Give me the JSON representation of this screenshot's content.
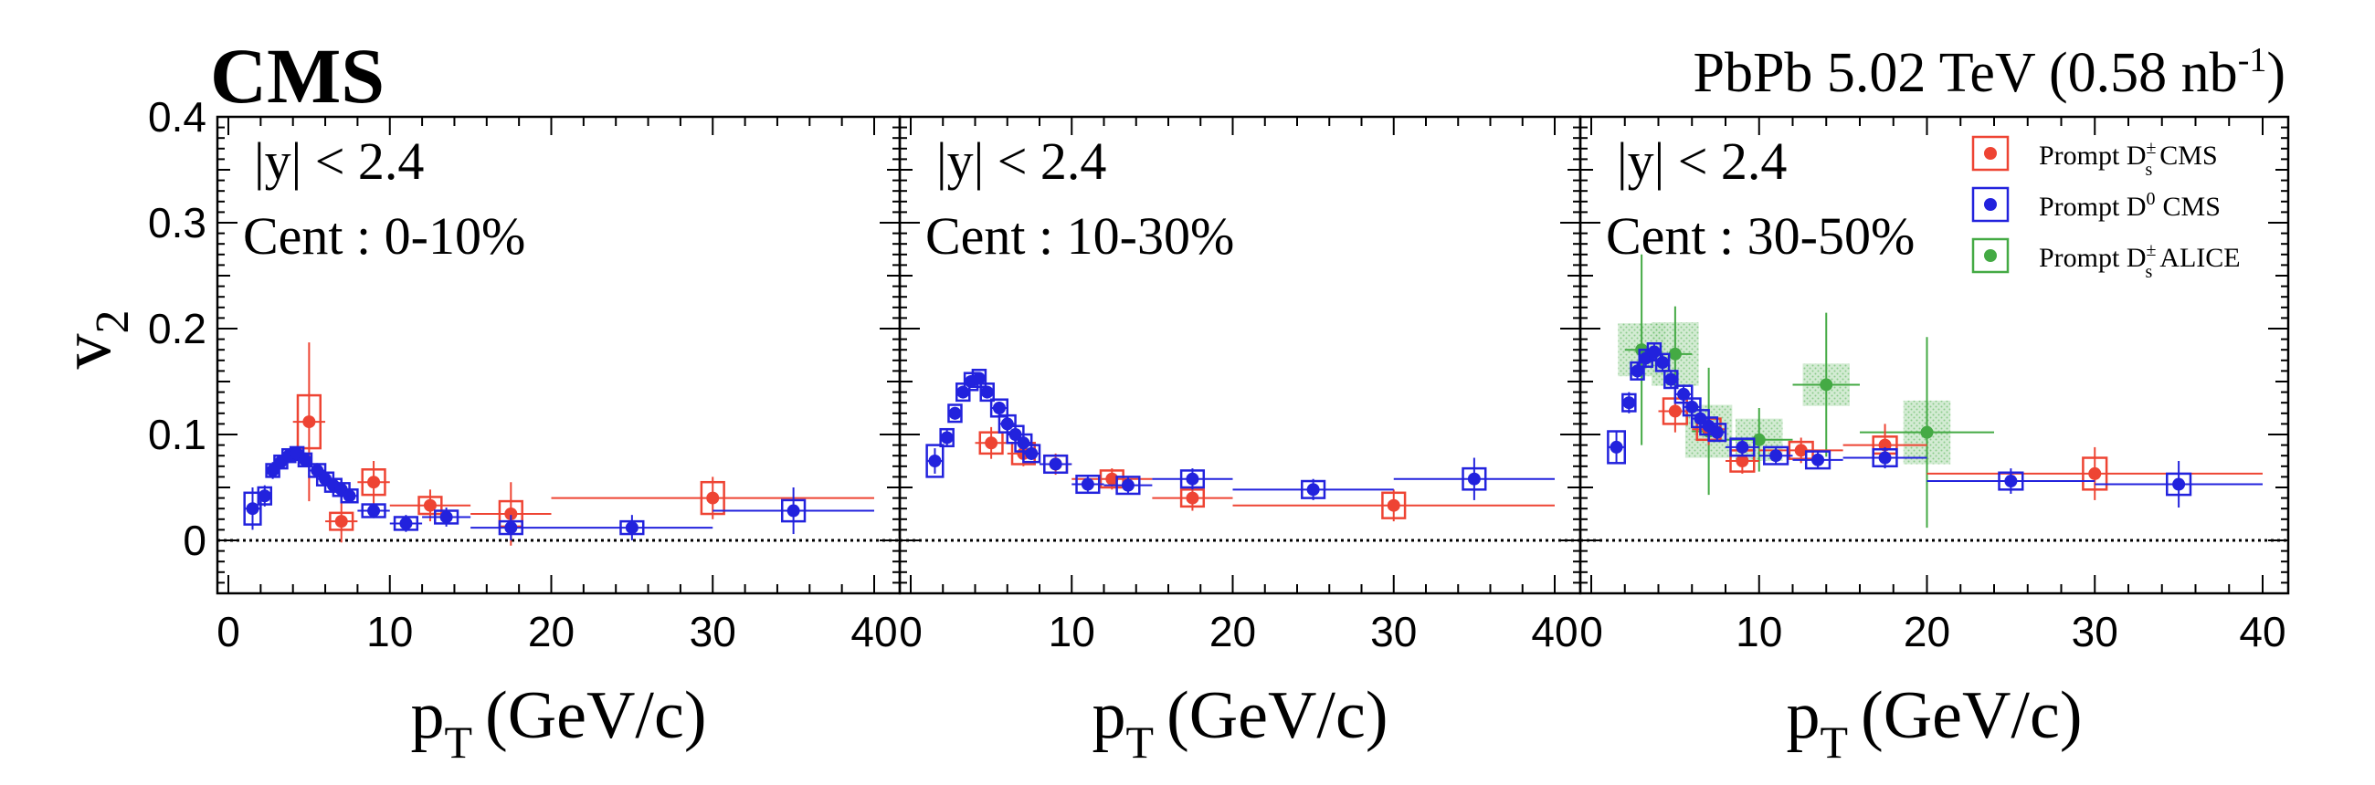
{
  "header": {
    "experiment": "CMS",
    "system_prefix": "PbPb 5.02 TeV (0.58 nb",
    "lumi_exp": "-1",
    "system_suffix": ")"
  },
  "axes": {
    "ylabel_main": "v",
    "ylabel_sub": "2",
    "xlabel_main": "p",
    "xlabel_sub": "T",
    "xlabel_suffix": "(GeV/c)"
  },
  "legend": {
    "items": [
      {
        "prefix": "Prompt D",
        "sup": "±",
        "sub": "s",
        "suffix": "CMS",
        "color": "#ee4433"
      },
      {
        "prefix": "Prompt D",
        "sup": "0",
        "sub": "",
        "suffix": "CMS",
        "color": "#2222dd"
      },
      {
        "prefix": "Prompt D",
        "sup": "±",
        "sub": "s",
        "suffix": "ALICE",
        "color": "#44aa44"
      }
    ]
  },
  "colors": {
    "ds_cms": "#ee4433",
    "d0_cms": "#2222dd",
    "ds_alice": "#44aa44",
    "alice_band": "#9fd39f"
  },
  "chart_data": [
    {
      "type": "scatter",
      "rapidity": "|y| < 2.4",
      "centrality": "Cent : 0-10%",
      "xlim": [
        0,
        40
      ],
      "ylim": [
        -0.05,
        0.4
      ],
      "xticks": [
        "0",
        "10",
        "20",
        "30",
        "40"
      ],
      "yticks": [
        "0",
        "0.1",
        "0.2",
        "0.3",
        "0.4"
      ],
      "series": [
        {
          "name": "Prompt D_s^± CMS",
          "points": [
            {
              "x": 5,
              "y": 0.112,
              "xerr": 1,
              "yerr": 0.075,
              "sys": 0.025
            },
            {
              "x": 7,
              "y": 0.018,
              "xerr": 1,
              "yerr": 0.02,
              "sys": 0.008
            },
            {
              "x": 9,
              "y": 0.055,
              "xerr": 1,
              "yerr": 0.02,
              "sys": 0.012
            },
            {
              "x": 12.5,
              "y": 0.033,
              "xerr": 2.5,
              "yerr": 0.015,
              "sys": 0.008
            },
            {
              "x": 17.5,
              "y": 0.025,
              "xerr": 2.5,
              "yerr": 0.03,
              "sys": 0.012
            },
            {
              "x": 30,
              "y": 0.04,
              "xerr": 10,
              "yerr": 0.02,
              "sys": 0.015
            }
          ]
        },
        {
          "name": "Prompt D^0 CMS",
          "points": [
            {
              "x": 1.5,
              "y": 0.03,
              "xerr": 0.5,
              "yerr": 0.02,
              "sys": 0.015
            },
            {
              "x": 2.25,
              "y": 0.042,
              "xerr": 0.25,
              "yerr": 0.01,
              "sys": 0.008
            },
            {
              "x": 2.75,
              "y": 0.066,
              "xerr": 0.25,
              "yerr": 0.008,
              "sys": 0.006
            },
            {
              "x": 3.25,
              "y": 0.074,
              "xerr": 0.25,
              "yerr": 0.007,
              "sys": 0.006
            },
            {
              "x": 3.75,
              "y": 0.08,
              "xerr": 0.25,
              "yerr": 0.007,
              "sys": 0.006
            },
            {
              "x": 4.25,
              "y": 0.082,
              "xerr": 0.25,
              "yerr": 0.007,
              "sys": 0.006
            },
            {
              "x": 4.75,
              "y": 0.076,
              "xerr": 0.25,
              "yerr": 0.007,
              "sys": 0.006
            },
            {
              "x": 5.5,
              "y": 0.066,
              "xerr": 0.5,
              "yerr": 0.007,
              "sys": 0.006
            },
            {
              "x": 6,
              "y": 0.058,
              "xerr": 0.5,
              "yerr": 0.007,
              "sys": 0.006
            },
            {
              "x": 6.5,
              "y": 0.052,
              "xerr": 0.5,
              "yerr": 0.007,
              "sys": 0.006
            },
            {
              "x": 7,
              "y": 0.048,
              "xerr": 0.5,
              "yerr": 0.007,
              "sys": 0.006
            },
            {
              "x": 7.5,
              "y": 0.042,
              "xerr": 0.5,
              "yerr": 0.007,
              "sys": 0.006
            },
            {
              "x": 9,
              "y": 0.028,
              "xerr": 1,
              "yerr": 0.007,
              "sys": 0.006
            },
            {
              "x": 11,
              "y": 0.016,
              "xerr": 1,
              "yerr": 0.008,
              "sys": 0.006
            },
            {
              "x": 13.5,
              "y": 0.022,
              "xerr": 1.5,
              "yerr": 0.009,
              "sys": 0.006
            },
            {
              "x": 17.5,
              "y": 0.012,
              "xerr": 2.5,
              "yerr": 0.012,
              "sys": 0.006
            },
            {
              "x": 25,
              "y": 0.012,
              "xerr": 5,
              "yerr": 0.012,
              "sys": 0.006
            },
            {
              "x": 35,
              "y": 0.028,
              "xerr": 5,
              "yerr": 0.022,
              "sys": 0.01
            }
          ]
        }
      ]
    },
    {
      "type": "scatter",
      "rapidity": "|y| < 2.4",
      "centrality": "Cent : 10-30%",
      "xlim": [
        0,
        40
      ],
      "ylim": [
        -0.05,
        0.4
      ],
      "xticks": [
        "0",
        "10",
        "20",
        "30",
        "40"
      ],
      "series": [
        {
          "name": "Prompt D_s^± CMS",
          "points": [
            {
              "x": 5,
              "y": 0.092,
              "xerr": 1,
              "yerr": 0.015,
              "sys": 0.01
            },
            {
              "x": 7,
              "y": 0.082,
              "xerr": 1,
              "yerr": 0.012,
              "sys": 0.01
            },
            {
              "x": 9,
              "y": 0.072,
              "xerr": 1,
              "yerr": 0.01,
              "sys": 0.008
            },
            {
              "x": 12.5,
              "y": 0.058,
              "xerr": 2.5,
              "yerr": 0.01,
              "sys": 0.008
            },
            {
              "x": 17.5,
              "y": 0.04,
              "xerr": 2.5,
              "yerr": 0.012,
              "sys": 0.008
            },
            {
              "x": 30,
              "y": 0.033,
              "xerr": 10,
              "yerr": 0.015,
              "sys": 0.012
            }
          ]
        },
        {
          "name": "Prompt D^0 CMS",
          "points": [
            {
              "x": 1.5,
              "y": 0.075,
              "xerr": 0.5,
              "yerr": 0.012,
              "sys": 0.015
            },
            {
              "x": 2.25,
              "y": 0.097,
              "xerr": 0.25,
              "yerr": 0.008,
              "sys": 0.008
            },
            {
              "x": 2.75,
              "y": 0.12,
              "xerr": 0.25,
              "yerr": 0.006,
              "sys": 0.008
            },
            {
              "x": 3.25,
              "y": 0.14,
              "xerr": 0.25,
              "yerr": 0.006,
              "sys": 0.008
            },
            {
              "x": 3.75,
              "y": 0.15,
              "xerr": 0.25,
              "yerr": 0.006,
              "sys": 0.008
            },
            {
              "x": 4.25,
              "y": 0.153,
              "xerr": 0.25,
              "yerr": 0.006,
              "sys": 0.008
            },
            {
              "x": 4.75,
              "y": 0.14,
              "xerr": 0.25,
              "yerr": 0.006,
              "sys": 0.008
            },
            {
              "x": 5.5,
              "y": 0.125,
              "xerr": 0.5,
              "yerr": 0.006,
              "sys": 0.008
            },
            {
              "x": 6,
              "y": 0.11,
              "xerr": 0.5,
              "yerr": 0.006,
              "sys": 0.008
            },
            {
              "x": 6.5,
              "y": 0.1,
              "xerr": 0.5,
              "yerr": 0.006,
              "sys": 0.008
            },
            {
              "x": 7,
              "y": 0.092,
              "xerr": 0.5,
              "yerr": 0.006,
              "sys": 0.008
            },
            {
              "x": 7.5,
              "y": 0.082,
              "xerr": 0.5,
              "yerr": 0.006,
              "sys": 0.008
            },
            {
              "x": 9,
              "y": 0.072,
              "xerr": 1,
              "yerr": 0.006,
              "sys": 0.008
            },
            {
              "x": 11,
              "y": 0.053,
              "xerr": 1,
              "yerr": 0.007,
              "sys": 0.008
            },
            {
              "x": 13.5,
              "y": 0.052,
              "xerr": 1.5,
              "yerr": 0.008,
              "sys": 0.008
            },
            {
              "x": 17.5,
              "y": 0.058,
              "xerr": 2.5,
              "yerr": 0.01,
              "sys": 0.008
            },
            {
              "x": 25,
              "y": 0.048,
              "xerr": 5,
              "yerr": 0.01,
              "sys": 0.008
            },
            {
              "x": 35,
              "y": 0.058,
              "xerr": 5,
              "yerr": 0.02,
              "sys": 0.01
            }
          ]
        }
      ]
    },
    {
      "type": "scatter",
      "rapidity": "|y| < 2.4",
      "centrality": "Cent : 30-50%",
      "xlim": [
        0,
        40
      ],
      "ylim": [
        -0.05,
        0.4
      ],
      "xticks": [
        "0",
        "10",
        "20",
        "30",
        "40"
      ],
      "series": [
        {
          "name": "Prompt D_s^± CMS",
          "points": [
            {
              "x": 5,
              "y": 0.122,
              "xerr": 1,
              "yerr": 0.02,
              "sys": 0.012
            },
            {
              "x": 7,
              "y": 0.105,
              "xerr": 1,
              "yerr": 0.015,
              "sys": 0.01
            },
            {
              "x": 9,
              "y": 0.075,
              "xerr": 1,
              "yerr": 0.012,
              "sys": 0.01
            },
            {
              "x": 12.5,
              "y": 0.085,
              "xerr": 2.5,
              "yerr": 0.012,
              "sys": 0.008
            },
            {
              "x": 17.5,
              "y": 0.09,
              "xerr": 2.5,
              "yerr": 0.02,
              "sys": 0.008
            },
            {
              "x": 30,
              "y": 0.063,
              "xerr": 10,
              "yerr": 0.025,
              "sys": 0.015
            }
          ]
        },
        {
          "name": "Prompt D^0 CMS",
          "points": [
            {
              "x": 1.5,
              "y": 0.088,
              "xerr": 0.5,
              "yerr": 0.015,
              "sys": 0.015
            },
            {
              "x": 2.25,
              "y": 0.13,
              "xerr": 0.25,
              "yerr": 0.01,
              "sys": 0.008
            },
            {
              "x": 2.75,
              "y": 0.16,
              "xerr": 0.25,
              "yerr": 0.008,
              "sys": 0.008
            },
            {
              "x": 3.25,
              "y": 0.172,
              "xerr": 0.25,
              "yerr": 0.008,
              "sys": 0.008
            },
            {
              "x": 3.75,
              "y": 0.178,
              "xerr": 0.25,
              "yerr": 0.008,
              "sys": 0.008
            },
            {
              "x": 4.25,
              "y": 0.168,
              "xerr": 0.25,
              "yerr": 0.008,
              "sys": 0.008
            },
            {
              "x": 4.75,
              "y": 0.152,
              "xerr": 0.25,
              "yerr": 0.008,
              "sys": 0.008
            },
            {
              "x": 5.5,
              "y": 0.138,
              "xerr": 0.5,
              "yerr": 0.008,
              "sys": 0.008
            },
            {
              "x": 6,
              "y": 0.126,
              "xerr": 0.5,
              "yerr": 0.008,
              "sys": 0.008
            },
            {
              "x": 6.5,
              "y": 0.115,
              "xerr": 0.5,
              "yerr": 0.008,
              "sys": 0.008
            },
            {
              "x": 7,
              "y": 0.108,
              "xerr": 0.5,
              "yerr": 0.008,
              "sys": 0.008
            },
            {
              "x": 7.5,
              "y": 0.102,
              "xerr": 0.5,
              "yerr": 0.008,
              "sys": 0.008
            },
            {
              "x": 9,
              "y": 0.088,
              "xerr": 1,
              "yerr": 0.008,
              "sys": 0.008
            },
            {
              "x": 11,
              "y": 0.08,
              "xerr": 1,
              "yerr": 0.008,
              "sys": 0.008
            },
            {
              "x": 13.5,
              "y": 0.076,
              "xerr": 1.5,
              "yerr": 0.008,
              "sys": 0.008
            },
            {
              "x": 17.5,
              "y": 0.078,
              "xerr": 2.5,
              "yerr": 0.01,
              "sys": 0.008
            },
            {
              "x": 25,
              "y": 0.056,
              "xerr": 5,
              "yerr": 0.012,
              "sys": 0.008
            },
            {
              "x": 35,
              "y": 0.053,
              "xerr": 5,
              "yerr": 0.022,
              "sys": 0.01
            }
          ]
        },
        {
          "name": "Prompt D_s^± ALICE",
          "points": [
            {
              "x": 3,
              "y": 0.18,
              "xerr": 1,
              "yerr": 0.09,
              "sysx": 1.4,
              "sys": 0.025
            },
            {
              "x": 5,
              "y": 0.176,
              "xerr": 1,
              "yerr": 0.045,
              "sysx": 1.4,
              "sys": 0.03
            },
            {
              "x": 7,
              "y": 0.103,
              "xerr": 1,
              "yerr": 0.06,
              "sysx": 1.4,
              "sys": 0.025
            },
            {
              "x": 10,
              "y": 0.095,
              "xerr": 2,
              "yerr": 0.03,
              "sysx": 1.4,
              "sys": 0.02
            },
            {
              "x": 14,
              "y": 0.147,
              "xerr": 2,
              "yerr": 0.068,
              "sysx": 1.4,
              "sys": 0.02
            },
            {
              "x": 20,
              "y": 0.102,
              "xerr": 4,
              "yerr": 0.09,
              "sysx": 1.4,
              "sys": 0.03
            }
          ]
        }
      ]
    }
  ]
}
